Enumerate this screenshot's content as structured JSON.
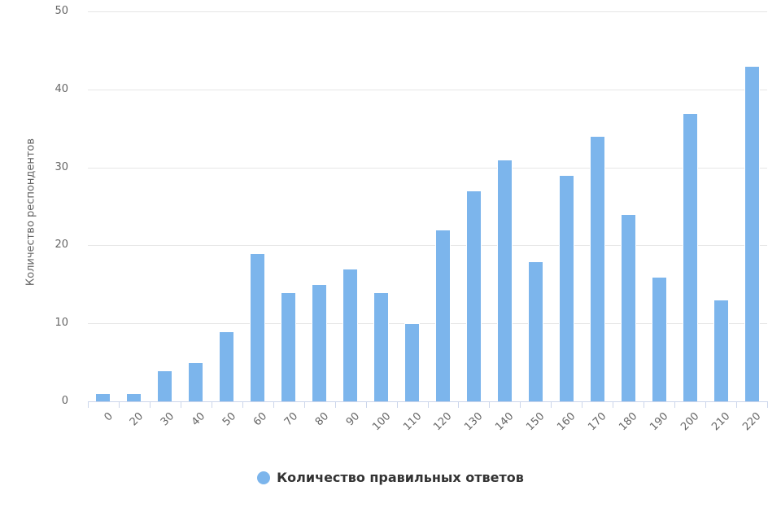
{
  "chart_data": {
    "type": "bar",
    "title": "",
    "xlabel": "",
    "ylabel": "Количество респондентов",
    "series_name": "Количество правильных ответов",
    "categories": [
      "0",
      "20",
      "30",
      "40",
      "50",
      "60",
      "70",
      "80",
      "90",
      "100",
      "110",
      "120",
      "130",
      "140",
      "150",
      "160",
      "170",
      "180",
      "190",
      "200",
      "210",
      "220"
    ],
    "values": [
      1,
      1,
      4,
      5,
      9,
      19,
      14,
      15,
      17,
      14,
      10,
      22,
      27,
      31,
      18,
      29,
      34,
      24,
      16,
      37,
      13,
      43
    ],
    "ylim": [
      0,
      50
    ],
    "yticks": [
      0,
      10,
      20,
      30,
      40,
      50
    ],
    "grid": true,
    "legend_position": "bottom-center"
  },
  "colors": {
    "bar": "#7cb5ec",
    "gridline": "#e6e6e6",
    "axis_line": "#ccd6eb",
    "tick": "#ccd6eb",
    "tick_label": "#666666",
    "axis_title": "#666666",
    "legend_text": "#333333",
    "background": "#ffffff"
  }
}
